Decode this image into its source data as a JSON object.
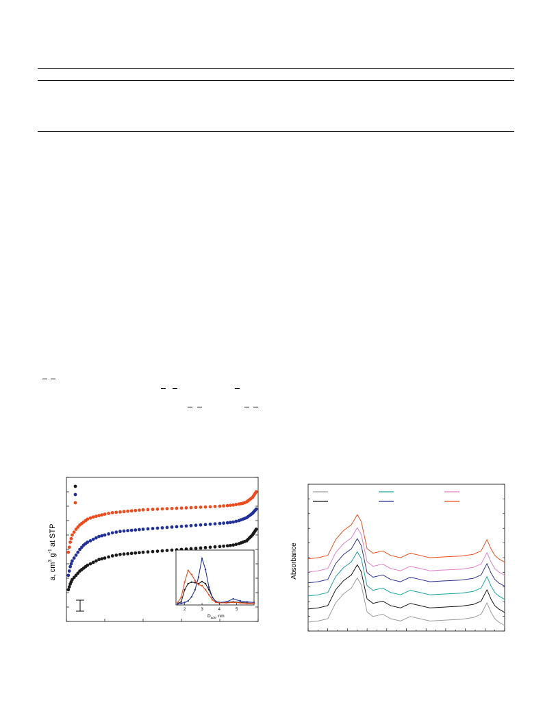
{
  "page": {
    "background": "#ffffff",
    "rule_color": "#000000"
  },
  "chart_data": [
    {
      "type": "scatter",
      "title": "",
      "xlabel": "",
      "ylabel": "a, cm3 g-1 at STP",
      "ylabel_parts": {
        "base": "a, cm",
        "sup1": "3",
        "mid": " g",
        "sup2": "-1",
        "tail": " at STP"
      },
      "xlim": [
        0,
        1
      ],
      "ylim": [
        0,
        1
      ],
      "grid": false,
      "legend": {
        "placement": "top-left",
        "marker_colors": [
          "#1a1a1a",
          "#22309a",
          "#f04a1c"
        ],
        "labels": [
          "",
          "",
          ""
        ]
      },
      "series": [
        {
          "color": "#1a1a1a",
          "x": [
            0.01,
            0.02,
            0.03,
            0.05,
            0.07,
            0.09,
            0.11,
            0.14,
            0.17,
            0.2,
            0.24,
            0.28,
            0.32,
            0.36,
            0.4,
            0.45,
            0.5,
            0.55,
            0.6,
            0.65,
            0.7,
            0.75,
            0.8,
            0.84,
            0.87,
            0.9,
            0.92,
            0.94,
            0.955,
            0.97,
            0.98,
            0.99
          ],
          "y": [
            0.22,
            0.26,
            0.29,
            0.32,
            0.35,
            0.37,
            0.39,
            0.41,
            0.43,
            0.44,
            0.455,
            0.465,
            0.47,
            0.475,
            0.48,
            0.485,
            0.49,
            0.495,
            0.5,
            0.505,
            0.51,
            0.515,
            0.52,
            0.525,
            0.53,
            0.54,
            0.55,
            0.56,
            0.58,
            0.6,
            0.62,
            0.64
          ]
        },
        {
          "color": "#22309a",
          "x": [
            0.01,
            0.02,
            0.03,
            0.05,
            0.07,
            0.09,
            0.11,
            0.14,
            0.17,
            0.2,
            0.24,
            0.28,
            0.32,
            0.36,
            0.4,
            0.45,
            0.5,
            0.55,
            0.6,
            0.65,
            0.7,
            0.75,
            0.8,
            0.84,
            0.87,
            0.9,
            0.92,
            0.94,
            0.955,
            0.97,
            0.98,
            0.99
          ],
          "y": [
            0.32,
            0.38,
            0.42,
            0.46,
            0.5,
            0.53,
            0.55,
            0.57,
            0.59,
            0.6,
            0.615,
            0.625,
            0.63,
            0.635,
            0.64,
            0.645,
            0.65,
            0.655,
            0.66,
            0.665,
            0.67,
            0.675,
            0.68,
            0.685,
            0.69,
            0.7,
            0.71,
            0.72,
            0.735,
            0.75,
            0.765,
            0.78
          ]
        },
        {
          "color": "#f04a1c",
          "x": [
            0.01,
            0.02,
            0.03,
            0.05,
            0.07,
            0.09,
            0.11,
            0.14,
            0.17,
            0.2,
            0.24,
            0.28,
            0.32,
            0.36,
            0.4,
            0.45,
            0.5,
            0.55,
            0.6,
            0.65,
            0.7,
            0.75,
            0.8,
            0.84,
            0.87,
            0.9,
            0.92,
            0.94,
            0.955,
            0.97,
            0.98,
            0.99
          ],
          "y": [
            0.48,
            0.55,
            0.6,
            0.64,
            0.67,
            0.69,
            0.71,
            0.725,
            0.735,
            0.745,
            0.755,
            0.76,
            0.765,
            0.77,
            0.775,
            0.778,
            0.781,
            0.784,
            0.787,
            0.79,
            0.793,
            0.796,
            0.8,
            0.804,
            0.808,
            0.815,
            0.82,
            0.83,
            0.845,
            0.86,
            0.88,
            0.9
          ]
        }
      ],
      "error_bar": {
        "label": ""
      },
      "inset": {
        "type": "line",
        "xlabel": "D",
        "xlabel_sub": "ads",
        "xlabel_unit": ", nm",
        "xlim": [
          1.5,
          6
        ],
        "ylim": [
          0,
          1
        ],
        "x_ticks": [
          "2",
          "3",
          "4",
          "5"
        ],
        "series": [
          {
            "color": "#1a1a1a",
            "x": [
              1.6,
              1.8,
              2.0,
              2.2,
              2.4,
              2.6,
              2.8,
              3.0,
              3.2,
              3.4,
              3.6,
              3.8,
              4.0,
              4.4,
              4.8,
              5.2,
              5.6,
              6.0
            ],
            "y": [
              0.03,
              0.06,
              0.3,
              0.42,
              0.45,
              0.44,
              0.42,
              0.46,
              0.42,
              0.3,
              0.15,
              0.06,
              0.04,
              0.05,
              0.06,
              0.05,
              0.04,
              0.03
            ]
          },
          {
            "color": "#22309a",
            "x": [
              1.6,
              1.8,
              2.0,
              2.2,
              2.4,
              2.6,
              2.8,
              3.0,
              3.2,
              3.4,
              3.6,
              3.8,
              4.0,
              4.4,
              4.8,
              5.2,
              5.6,
              6.0
            ],
            "y": [
              0.02,
              0.03,
              0.05,
              0.08,
              0.16,
              0.3,
              0.55,
              0.92,
              0.7,
              0.35,
              0.15,
              0.07,
              0.05,
              0.06,
              0.12,
              0.08,
              0.06,
              0.05
            ]
          },
          {
            "color": "#f04a1c",
            "x": [
              1.6,
              1.8,
              2.0,
              2.2,
              2.4,
              2.6,
              2.8,
              3.0,
              3.2,
              3.4,
              3.6,
              3.8,
              4.0,
              4.4,
              4.8,
              5.2,
              5.6,
              6.0
            ],
            "y": [
              0.05,
              0.15,
              0.45,
              0.68,
              0.6,
              0.48,
              0.4,
              0.38,
              0.3,
              0.2,
              0.1,
              0.05,
              0.04,
              0.04,
              0.05,
              0.04,
              0.03,
              0.03
            ]
          }
        ]
      }
    },
    {
      "type": "line",
      "title": "",
      "xlabel": "",
      "ylabel": "Absorbance",
      "xlim": [
        0,
        1
      ],
      "ylim": [
        0,
        1
      ],
      "grid": false,
      "legend": {
        "placement": "top",
        "entries": [
          {
            "label": "",
            "color": "#9a9a9a"
          },
          {
            "label": "",
            "color": "#17a39a"
          },
          {
            "label": "",
            "color": "#e07fc4"
          },
          {
            "label": "",
            "color": "#111111"
          },
          {
            "label": "",
            "color": "#2a2f8f"
          },
          {
            "label": "",
            "color": "#f04a1c"
          }
        ]
      },
      "series": [
        {
          "color": "#9a9a9a",
          "offset": 0.0
        },
        {
          "color": "#111111",
          "offset": 0.12
        },
        {
          "color": "#17a39a",
          "offset": 0.24
        },
        {
          "color": "#2a2f8f",
          "offset": 0.36
        },
        {
          "color": "#e07fc4",
          "offset": 0.46
        },
        {
          "color": "#f04a1c",
          "offset": 0.58
        }
      ],
      "profile_x": [
        0.0,
        0.05,
        0.1,
        0.14,
        0.18,
        0.22,
        0.25,
        0.27,
        0.3,
        0.33,
        0.38,
        0.42,
        0.47,
        0.52,
        0.57,
        0.62,
        0.67,
        0.72,
        0.78,
        0.84,
        0.88,
        0.91,
        0.93,
        0.95,
        0.97,
        1.0
      ],
      "profile_y": [
        0.03,
        0.04,
        0.06,
        0.2,
        0.28,
        0.33,
        0.42,
        0.36,
        0.12,
        0.08,
        0.1,
        0.06,
        0.04,
        0.08,
        0.06,
        0.04,
        0.045,
        0.05,
        0.055,
        0.07,
        0.1,
        0.2,
        0.12,
        0.06,
        0.03,
        0.0
      ]
    }
  ]
}
